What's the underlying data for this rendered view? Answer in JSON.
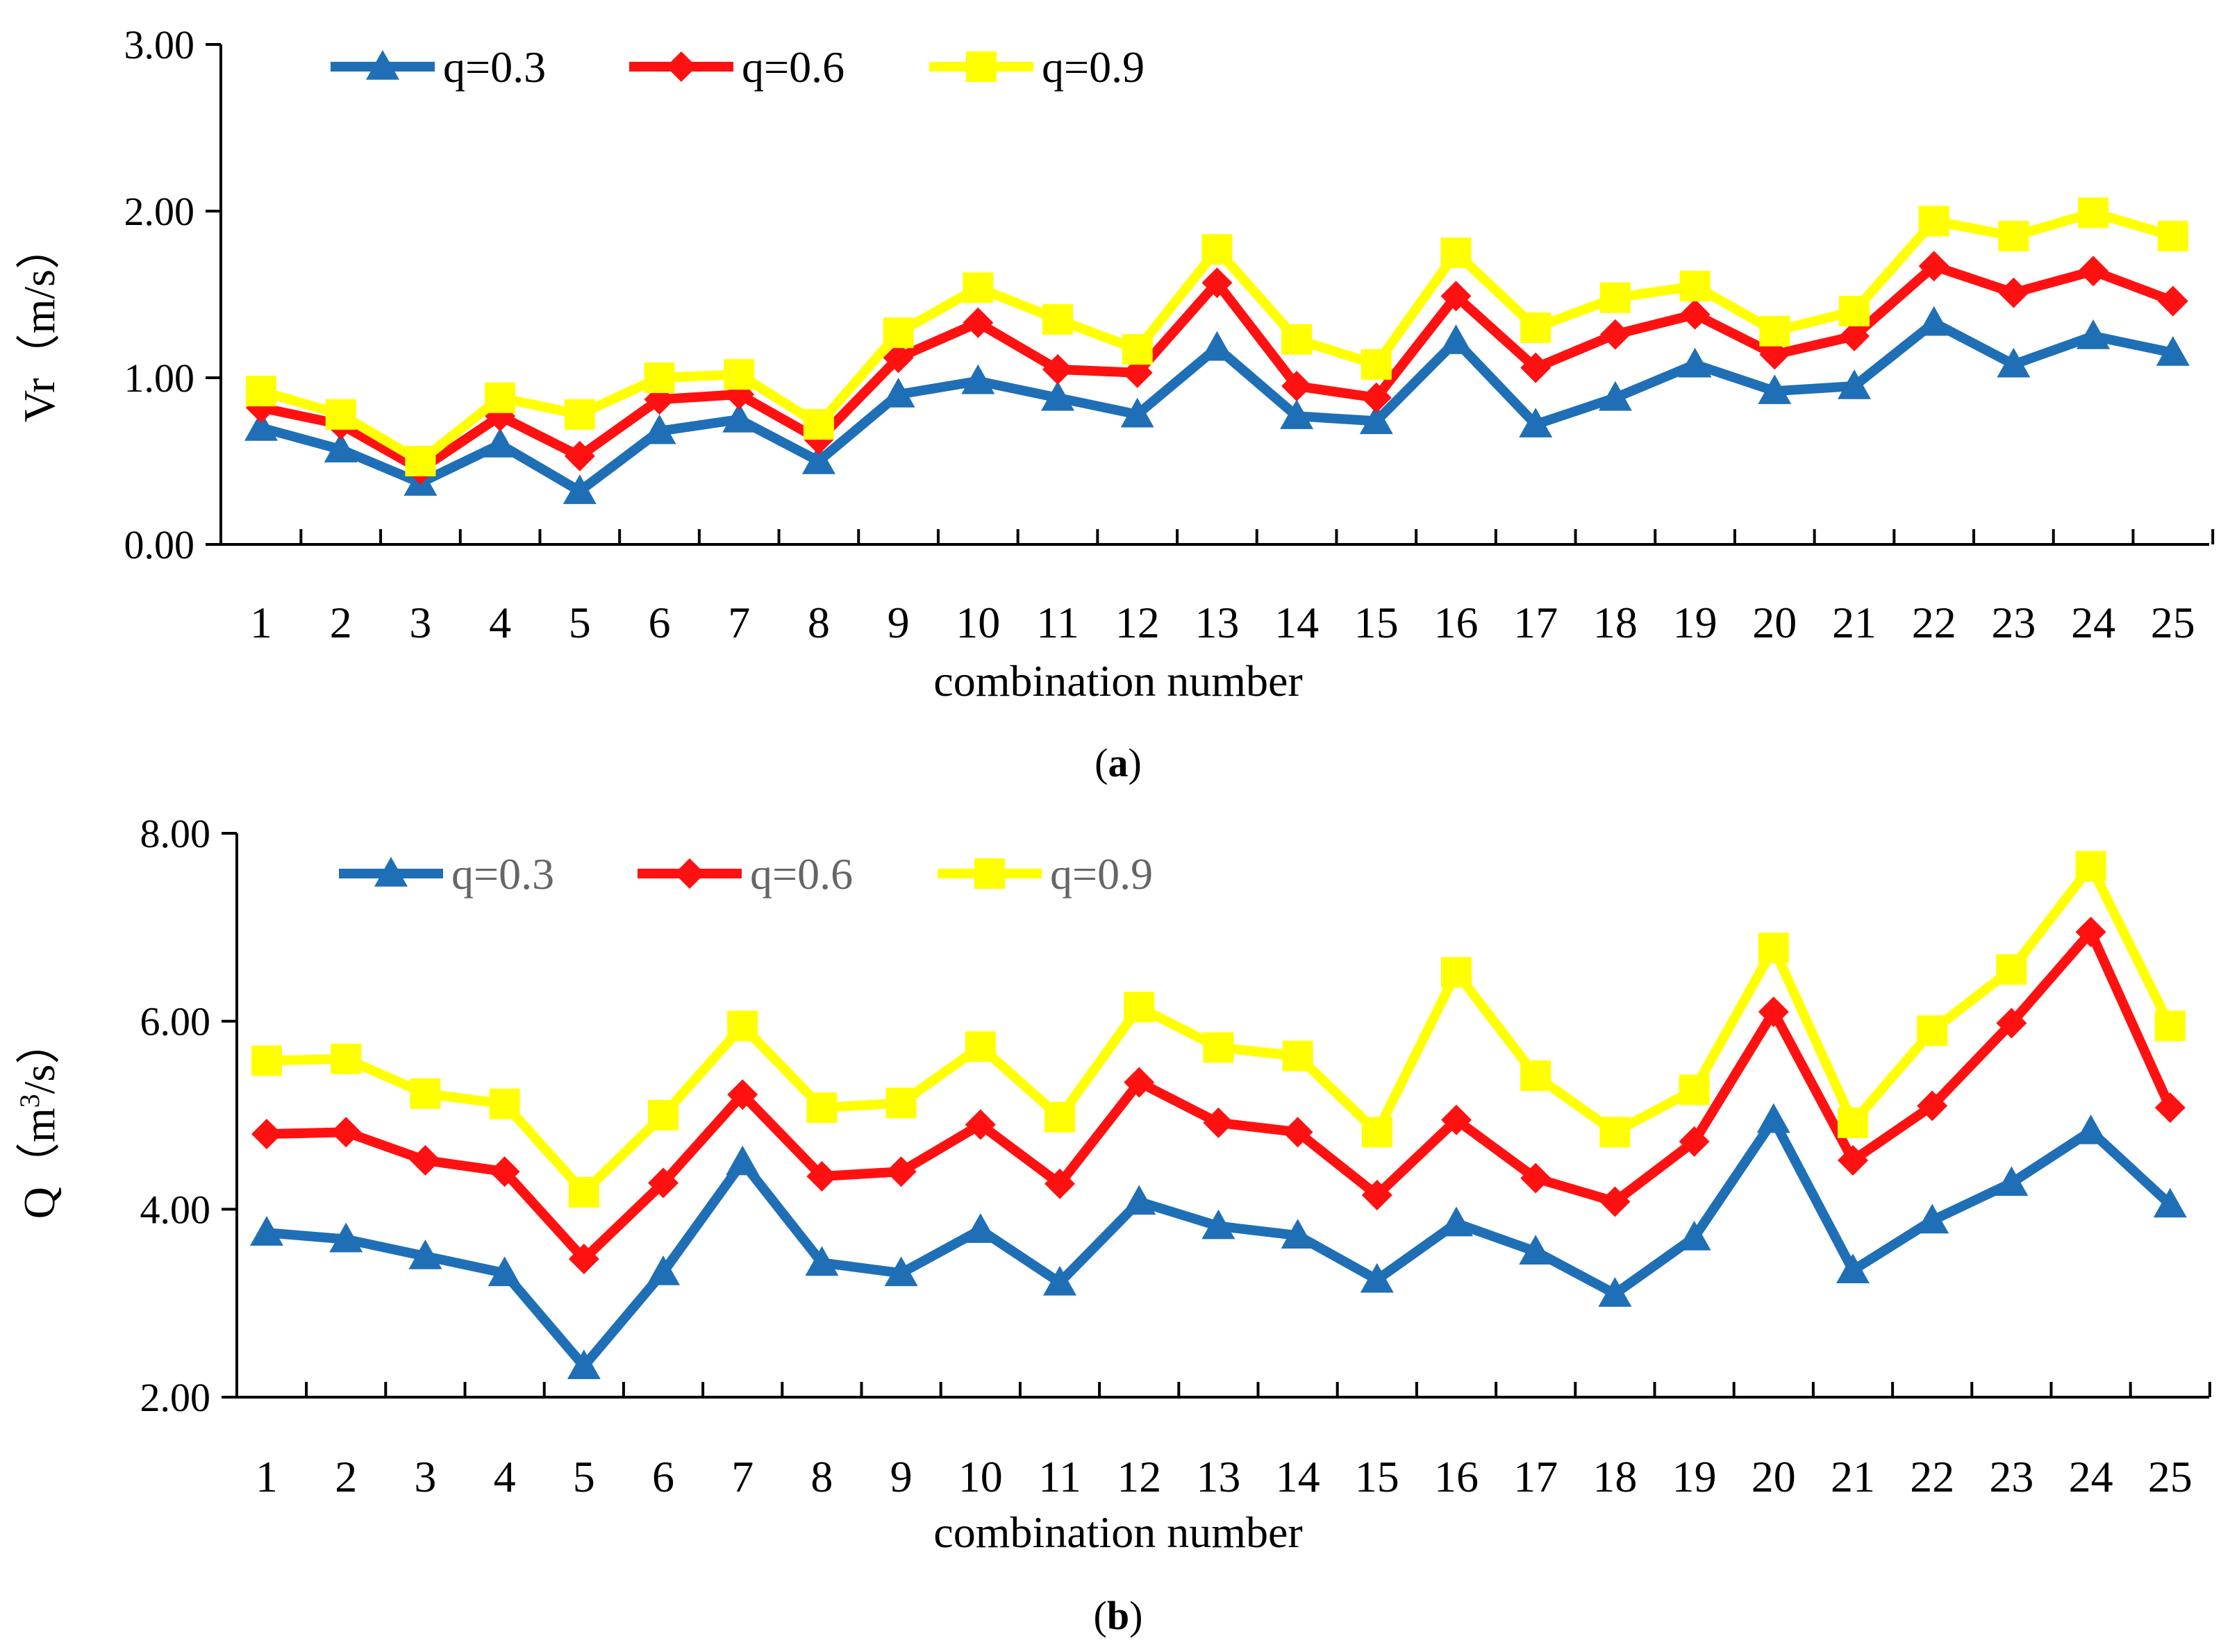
{
  "colors": {
    "q03": "#1f6fb6",
    "q06": "#ff1111",
    "q09": "#ffff00",
    "axis": "#000000"
  },
  "chart_data": [
    {
      "id": "a",
      "type": "line",
      "caption_letter": "a",
      "caption_open": "(",
      "caption_close": ")",
      "xlabel": "combination number",
      "ylabel": "Vr（m/s）",
      "ylim": [
        0,
        3
      ],
      "y_ticks": [
        "0.00",
        "1.00",
        "2.00",
        "3.00"
      ],
      "y_tick_values": [
        0,
        1,
        2,
        3
      ],
      "categories": [
        "1",
        "2",
        "3",
        "4",
        "5",
        "6",
        "7",
        "8",
        "9",
        "10",
        "11",
        "12",
        "13",
        "14",
        "15",
        "16",
        "17",
        "18",
        "19",
        "20",
        "21",
        "22",
        "23",
        "24",
        "25"
      ],
      "series": [
        {
          "name": "q=0.3",
          "color": "#1f6fb6",
          "marker": "triangle",
          "values": [
            0.7,
            0.57,
            0.37,
            0.6,
            0.32,
            0.68,
            0.75,
            0.5,
            0.9,
            0.98,
            0.88,
            0.78,
            1.18,
            0.77,
            0.74,
            1.22,
            0.72,
            0.88,
            1.08,
            0.92,
            0.95,
            1.33,
            1.08,
            1.25,
            1.15
          ]
        },
        {
          "name": "q=0.6",
          "color": "#ff1111",
          "marker": "diamond",
          "values": [
            0.82,
            0.72,
            0.45,
            0.77,
            0.53,
            0.87,
            0.9,
            0.63,
            1.12,
            1.33,
            1.05,
            1.03,
            1.57,
            0.95,
            0.88,
            1.49,
            1.06,
            1.26,
            1.38,
            1.14,
            1.25,
            1.67,
            1.51,
            1.64,
            1.46
          ]
        },
        {
          "name": "q=0.9",
          "color": "#ffff00",
          "marker": "square",
          "values": [
            0.92,
            0.78,
            0.5,
            0.88,
            0.78,
            1.0,
            1.02,
            0.72,
            1.27,
            1.54,
            1.35,
            1.17,
            1.77,
            1.23,
            1.08,
            1.75,
            1.3,
            1.48,
            1.55,
            1.28,
            1.4,
            1.94,
            1.85,
            1.99,
            1.85
          ]
        }
      ]
    },
    {
      "id": "b",
      "type": "line",
      "caption_letter": "b",
      "caption_open": "(",
      "caption_close": ")",
      "xlabel": "combination number",
      "ylabel_prefix": "Q（m",
      "ylabel_sup": "3",
      "ylabel_suffix": "/s）",
      "ylim": [
        2,
        8
      ],
      "y_ticks": [
        "2.00",
        "4.00",
        "6.00",
        "8.00"
      ],
      "y_tick_values": [
        2,
        4,
        6,
        8
      ],
      "categories": [
        "1",
        "2",
        "3",
        "4",
        "5",
        "6",
        "7",
        "8",
        "9",
        "10",
        "11",
        "12",
        "13",
        "14",
        "15",
        "16",
        "17",
        "18",
        "19",
        "20",
        "21",
        "22",
        "23",
        "24",
        "25"
      ],
      "series": [
        {
          "name": "q=0.3",
          "color": "#1f6fb6",
          "marker": "triangle",
          "values": [
            3.75,
            3.68,
            3.5,
            3.32,
            2.33,
            3.33,
            4.5,
            3.43,
            3.32,
            3.78,
            3.22,
            4.08,
            3.82,
            3.72,
            3.25,
            3.85,
            3.55,
            3.1,
            3.7,
            4.95,
            3.35,
            3.88,
            4.28,
            4.83,
            4.05
          ]
        },
        {
          "name": "q=0.6",
          "color": "#ff1111",
          "marker": "diamond",
          "values": [
            4.8,
            4.82,
            4.52,
            4.4,
            3.47,
            4.28,
            5.22,
            4.35,
            4.4,
            4.9,
            4.27,
            5.35,
            4.92,
            4.82,
            4.15,
            4.95,
            4.33,
            4.08,
            4.72,
            6.1,
            4.52,
            5.1,
            5.98,
            6.95,
            5.08
          ]
        },
        {
          "name": "q=0.9",
          "color": "#ffff00",
          "marker": "square",
          "values": [
            5.58,
            5.6,
            5.23,
            5.12,
            4.18,
            5.0,
            5.95,
            5.08,
            5.13,
            5.73,
            4.98,
            6.15,
            5.72,
            5.63,
            4.82,
            6.52,
            5.42,
            4.82,
            5.27,
            6.78,
            4.92,
            5.9,
            6.55,
            7.65,
            5.95
          ]
        }
      ]
    }
  ]
}
